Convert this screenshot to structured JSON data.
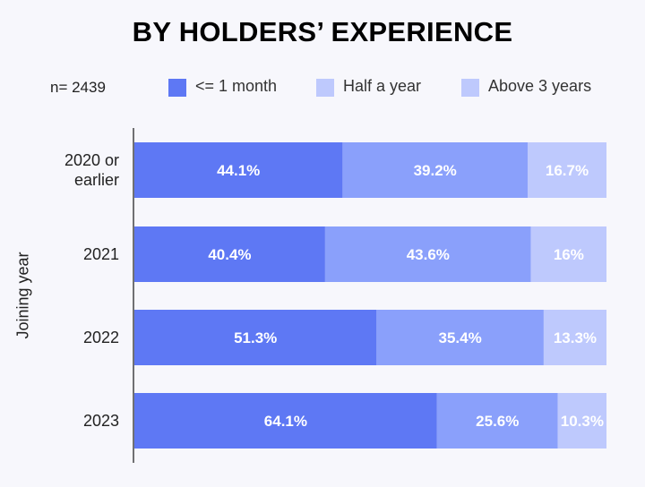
{
  "title": "BY HOLDERS’ EXPERIENCE",
  "sample_size": "n= 2439",
  "chart_data": {
    "type": "bar",
    "orientation": "horizontal",
    "stacked": true,
    "normalized": true,
    "ylabel": "Joining year",
    "categories": [
      "2020 or earlier",
      "2021",
      "2022",
      "2023"
    ],
    "series": [
      {
        "name": "<= 1 month",
        "color": "#5e78f4",
        "values": [
          44.1,
          40.4,
          51.3,
          64.1
        ],
        "labels": [
          "44.1%",
          "40.4%",
          "51.3%",
          "64.1%"
        ]
      },
      {
        "name": "Half a year",
        "color": "#8aa0fb",
        "values": [
          39.2,
          43.6,
          35.4,
          25.6
        ],
        "labels": [
          "39.2%",
          "43.6%",
          "35.4%",
          "25.6%"
        ]
      },
      {
        "name": "Above 3 years",
        "color": "#bec9fd",
        "values": [
          16.7,
          16.0,
          13.3,
          10.3
        ],
        "labels": [
          "16.7%",
          "16%",
          "13.3%",
          "10.3%"
        ]
      }
    ],
    "xlim": [
      0,
      100
    ],
    "grid": false,
    "legend_position": "top"
  }
}
